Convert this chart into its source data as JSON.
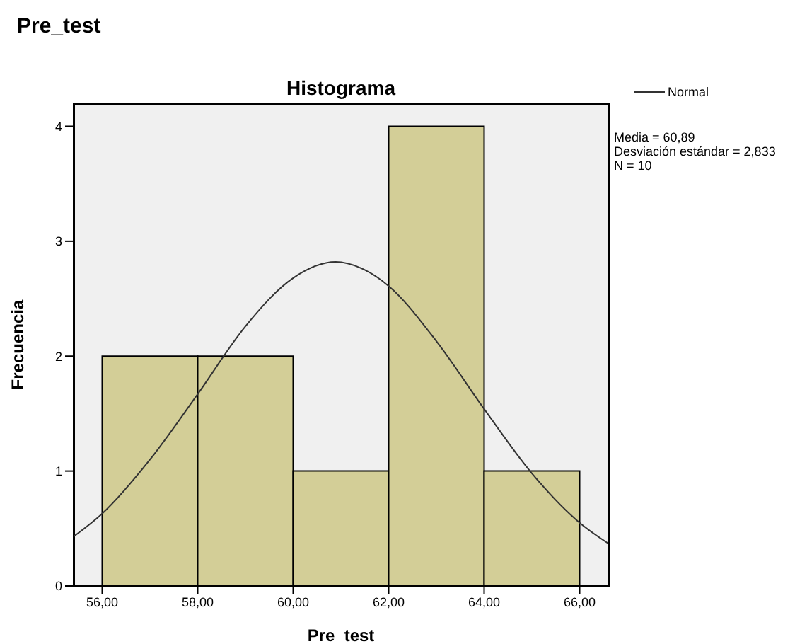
{
  "chart_data": {
    "type": "histogram",
    "subtitle": "Pre_test",
    "title": "Histograma",
    "xlabel": "Pre_test",
    "ylabel": "Frecuencia",
    "bins": [
      56,
      58,
      60,
      62,
      64,
      66
    ],
    "values": [
      2,
      2,
      1,
      4,
      1
    ],
    "color": "#d3ce97",
    "series": [
      {
        "name": "Normal",
        "type": "line",
        "color": "#333333",
        "x": [
          55.4,
          56,
          57,
          58,
          59,
          60,
          60.89,
          61.5,
          62,
          63,
          64,
          65,
          66,
          66.6
        ],
        "values": [
          0.43,
          0.63,
          1.1,
          1.67,
          2.26,
          2.68,
          2.82,
          2.75,
          2.61,
          2.13,
          1.54,
          0.98,
          0.55,
          0.37
        ]
      }
    ],
    "xlim": [
      55.4,
      66.6
    ],
    "xticks": [
      {
        "value": 56,
        "label": "56,00"
      },
      {
        "value": 58,
        "label": "58,00"
      },
      {
        "value": 60,
        "label": "60,00"
      },
      {
        "value": 62,
        "label": "62,00"
      },
      {
        "value": 64,
        "label": "64,00"
      },
      {
        "value": 66,
        "label": "66,00"
      }
    ],
    "ylim": [
      0,
      4.2
    ],
    "yticks": [
      0,
      1,
      2,
      3,
      4
    ],
    "legend": "top right",
    "annotations": [
      "Media = 60,89",
      "Desviación estándar = 2,833",
      "N = 10"
    ]
  }
}
